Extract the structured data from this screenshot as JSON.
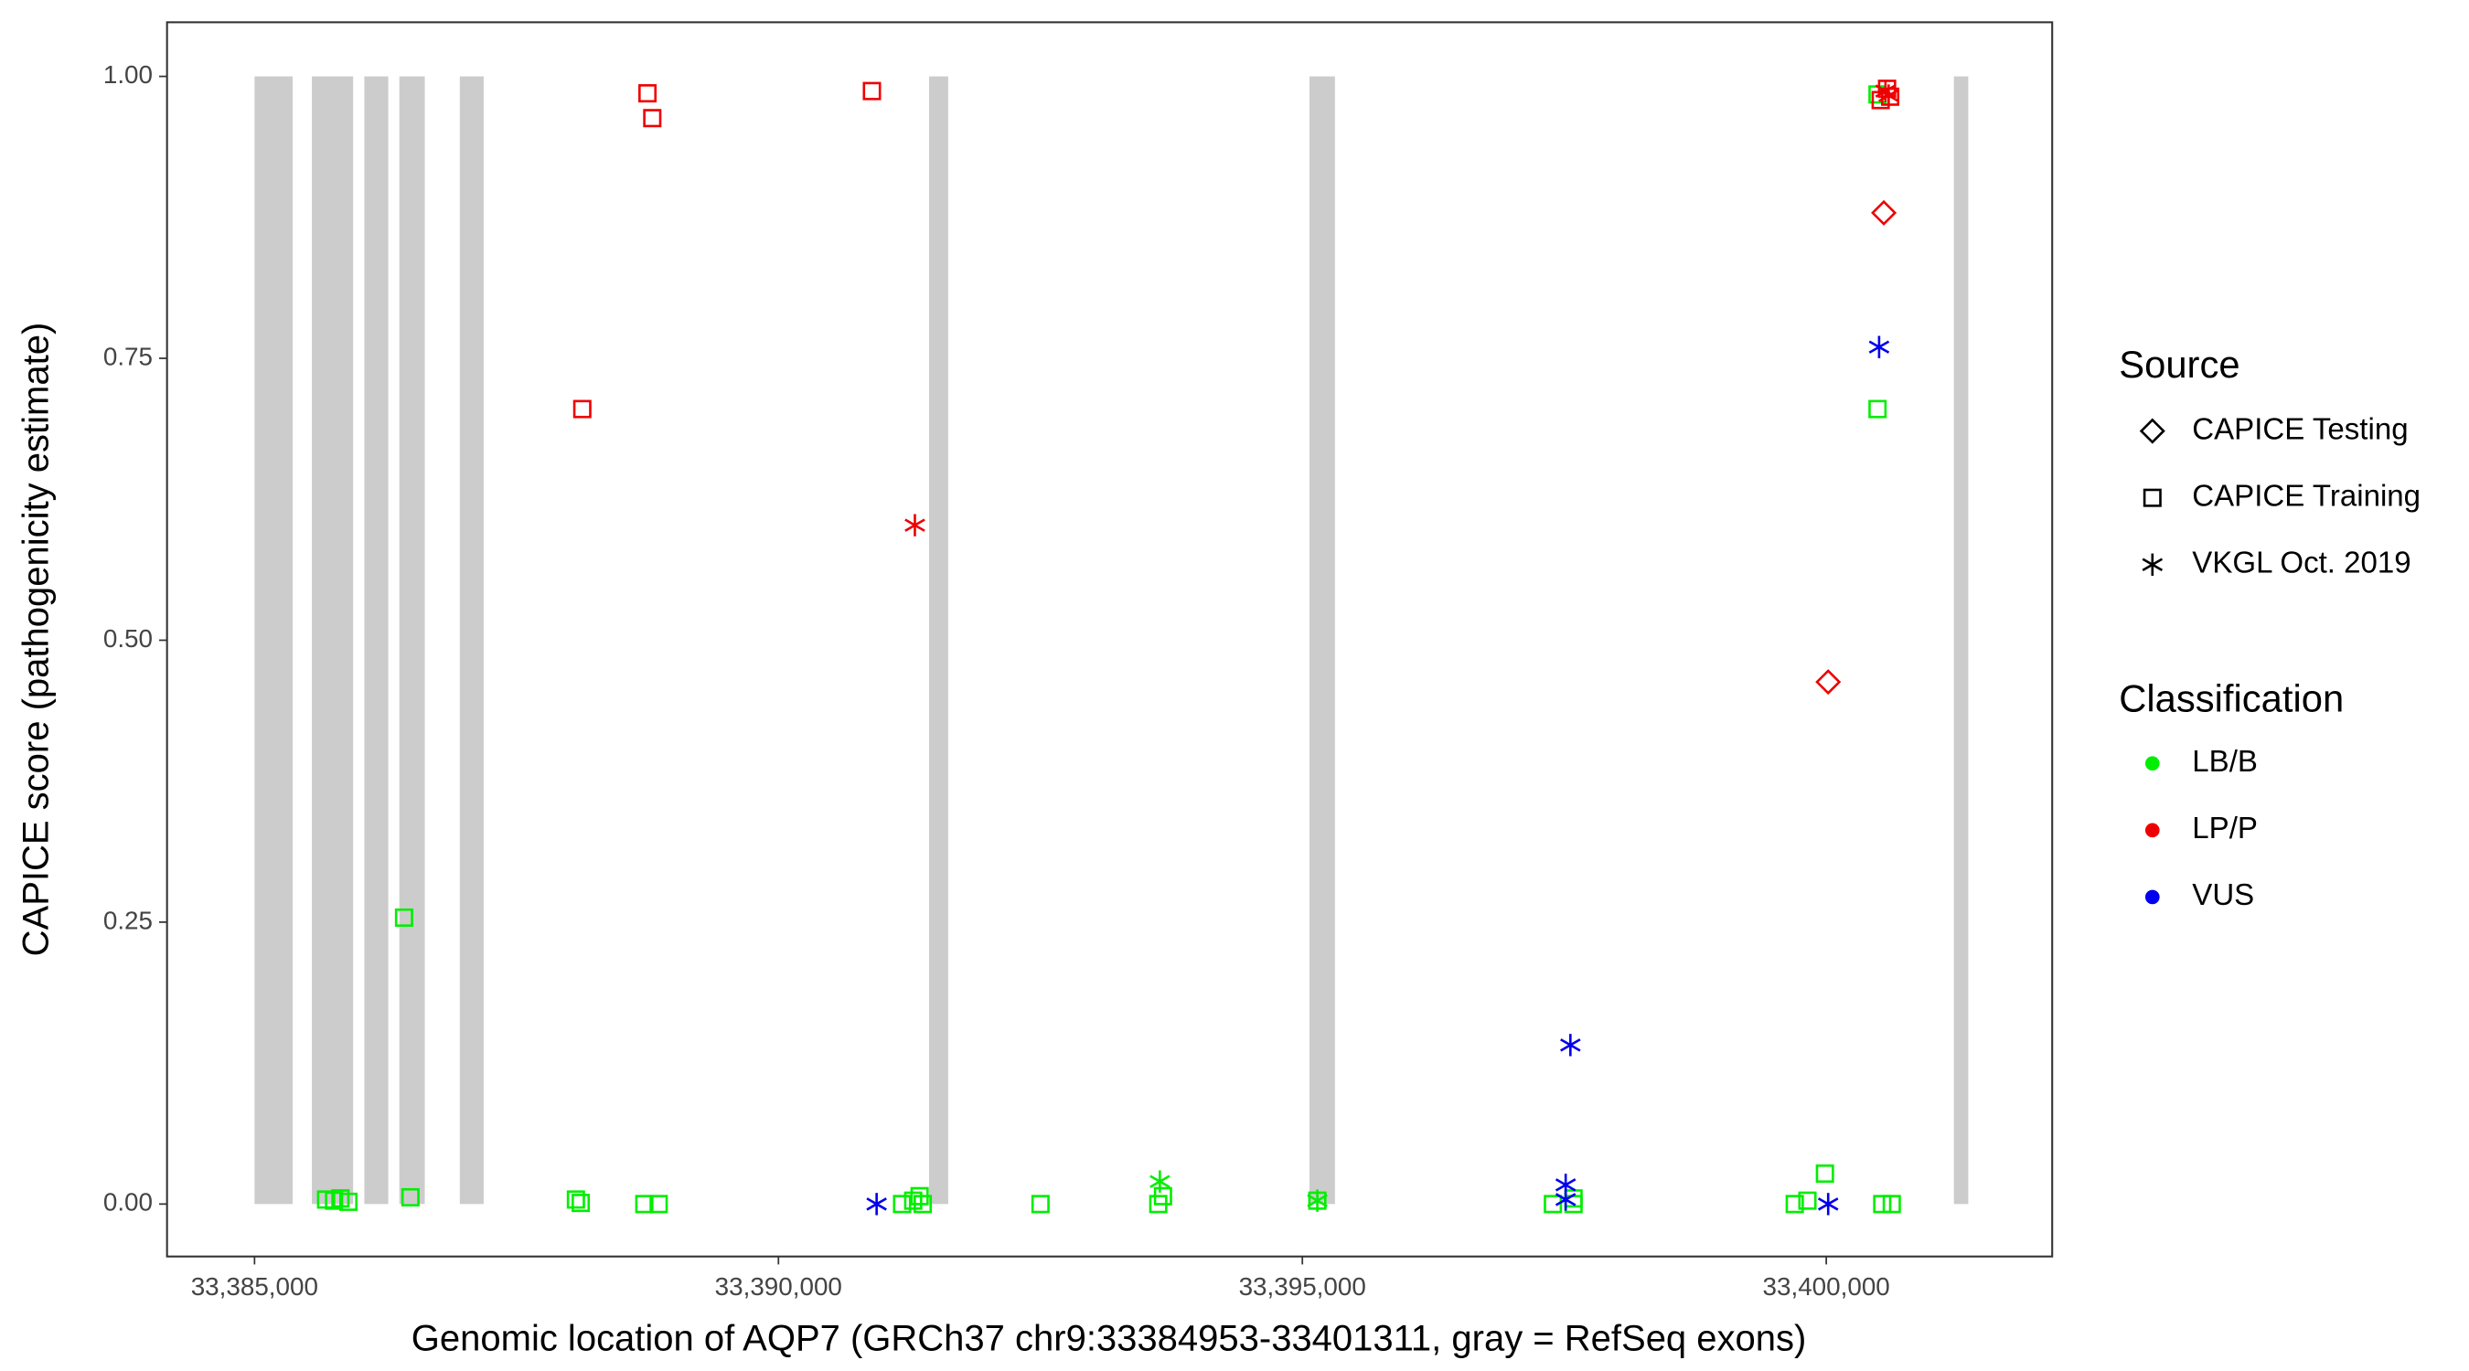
{
  "chart_data": {
    "type": "scatter",
    "x_label": "Genomic location of AQP7 (GRCh37 chr9:33384953-33401311, gray = RefSeq exons)",
    "y_label": "CAPICE score (pathogenicity estimate)",
    "xlim": [
      33384165,
      33402156
    ],
    "ylim": [
      -0.0465,
      1.048
    ],
    "xticks": [
      {
        "value": 33385000,
        "label": "33,385,000"
      },
      {
        "value": 33390000,
        "label": "33,390,000"
      },
      {
        "value": 33395000,
        "label": "33,395,000"
      },
      {
        "value": 33400000,
        "label": "33,400,000"
      }
    ],
    "yticks": [
      {
        "value": 0,
        "label": "0.00"
      },
      {
        "value": 0.25,
        "label": "0.25"
      },
      {
        "value": 0.5,
        "label": "0.50"
      },
      {
        "value": 0.75,
        "label": "0.75"
      },
      {
        "value": 1,
        "label": "1.00"
      }
    ],
    "exon_color": "#cccccc",
    "exons": [
      [
        33385000,
        33385364
      ],
      [
        33385547,
        33385941
      ],
      [
        33386048,
        33386276
      ],
      [
        33386382,
        33386625
      ],
      [
        33386959,
        33387187
      ],
      [
        33391438,
        33391620
      ],
      [
        33395068,
        33395311
      ],
      [
        33401218,
        33401355
      ]
    ],
    "source_legend": {
      "title": "Source",
      "items": [
        {
          "name": "CAPICE Testing",
          "shape": "diamond"
        },
        {
          "name": "CAPICE Training",
          "shape": "square"
        },
        {
          "name": "VKGL Oct. 2019",
          "shape": "asterisk"
        }
      ]
    },
    "classification_legend": {
      "title": "Classification",
      "items": [
        {
          "name": "LB/B",
          "color": "#00ee00"
        },
        {
          "name": "LP/P",
          "color": "#ee0000"
        },
        {
          "name": "VUS",
          "color": "#0000ee"
        }
      ]
    },
    "series": [
      {
        "source": "CAPICE Training",
        "classification": "LB/B",
        "x": [
          33385683,
          33385759,
          33385820,
          33385896,
          33386427,
          33386488,
          33388067,
          33388113,
          33388720,
          33388857,
          33391180,
          33391286,
          33391347,
          33391377,
          33392501,
          33393625,
          33393670,
          33395143,
          33397391,
          33397588,
          33397588,
          33399699,
          33399820,
          33399987,
          33400489,
          33400489,
          33400534,
          33400625
        ],
        "y": [
          0.004,
          0.003,
          0.005,
          0.002,
          0.254,
          0.006,
          0.004,
          0.001,
          0,
          0,
          0,
          0.003,
          0.007,
          0,
          0,
          0,
          0.007,
          0.003,
          0,
          0.005,
          0,
          0,
          0.003,
          0.027,
          0.705,
          0.984,
          0,
          0
        ]
      },
      {
        "source": "VKGL Oct. 2019",
        "classification": "LB/B",
        "x": [
          33393640,
          33395143
        ],
        "y": [
          0.02,
          0.003
        ]
      },
      {
        "source": "CAPICE Training",
        "classification": "LP/P",
        "x": [
          33388128,
          33388750,
          33388796,
          33390892,
          33400519,
          33400580,
          33400610
        ],
        "y": [
          0.705,
          0.985,
          0.963,
          0.987,
          0.979,
          0.989,
          0.982
        ]
      },
      {
        "source": "CAPICE Testing",
        "classification": "LP/P",
        "x": [
          33400549,
          33400018
        ],
        "y": [
          0.879,
          0.463
        ]
      },
      {
        "source": "VKGL Oct. 2019",
        "classification": "LP/P",
        "x": [
          33391302,
          33400595,
          33400565
        ],
        "y": [
          0.602,
          0.983,
          0.987
        ]
      },
      {
        "source": "VKGL Oct. 2019",
        "classification": "VUS",
        "x": [
          33390937,
          33397558,
          33397513,
          33397513,
          33400504,
          33400018
        ],
        "y": [
          0,
          0.141,
          0.017,
          0.004,
          0.76,
          0
        ]
      }
    ]
  }
}
